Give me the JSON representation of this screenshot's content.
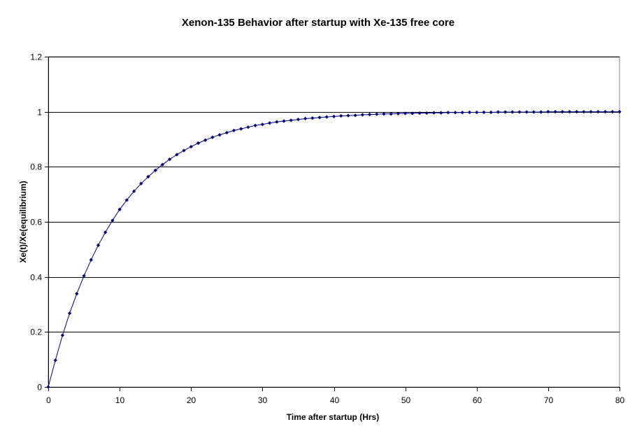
{
  "chart_data": {
    "type": "line",
    "title": "Xenon-135 Behavior after startup with Xe-135 free core",
    "xlabel": "Time after startup (Hrs)",
    "ylabel": "Xe(t)/Xe(equilibrium)",
    "xlim": [
      0,
      80
    ],
    "ylim": [
      0,
      1.2
    ],
    "x_ticks": [
      "0",
      "10",
      "20",
      "30",
      "40",
      "50",
      "60",
      "70",
      "80"
    ],
    "y_ticks": [
      "0",
      "0.2",
      "0.4",
      "0.6",
      "0.8",
      "1",
      "1.2"
    ],
    "grid": "horizontal",
    "legend": "none",
    "series_color": "#000080",
    "series": [
      {
        "x": [
          0,
          1,
          2,
          3,
          4,
          5,
          6,
          7,
          8,
          9,
          10,
          11,
          12,
          13,
          14,
          15,
          16,
          17,
          18,
          19,
          20,
          21,
          22,
          23,
          24,
          25,
          26,
          27,
          28,
          29,
          30,
          31,
          32,
          33,
          34,
          35,
          36,
          37,
          38,
          39,
          40,
          41,
          42,
          43,
          44,
          45,
          46,
          47,
          48,
          49,
          50,
          51,
          52,
          53,
          54,
          55,
          56,
          57,
          58,
          59,
          60,
          61,
          62,
          63,
          64,
          65,
          66,
          67,
          68,
          69,
          70,
          71,
          72,
          73,
          74,
          75,
          76,
          77,
          78,
          79,
          80
        ],
        "values": [
          0,
          0.097,
          0.188,
          0.268,
          0.339,
          0.404,
          0.462,
          0.515,
          0.562,
          0.605,
          0.645,
          0.679,
          0.711,
          0.739,
          0.764,
          0.787,
          0.808,
          0.827,
          0.844,
          0.859,
          0.873,
          0.886,
          0.897,
          0.907,
          0.916,
          0.924,
          0.932,
          0.938,
          0.944,
          0.95,
          0.954,
          0.959,
          0.963,
          0.966,
          0.969,
          0.972,
          0.975,
          0.977,
          0.979,
          0.981,
          0.983,
          0.985,
          0.986,
          0.987,
          0.989,
          0.99,
          0.991,
          0.992,
          0.992,
          0.993,
          0.994,
          0.994,
          0.995,
          0.995,
          0.996,
          0.996,
          0.997,
          0.997,
          0.997,
          0.998,
          0.998,
          0.998,
          0.998,
          0.999,
          0.999,
          0.999,
          0.999,
          0.999,
          0.999,
          0.999,
          1.0,
          1.0,
          1.0,
          1.0,
          1.0,
          1.0,
          1.0,
          1.0,
          1.0,
          1.0,
          1.0
        ]
      }
    ]
  }
}
